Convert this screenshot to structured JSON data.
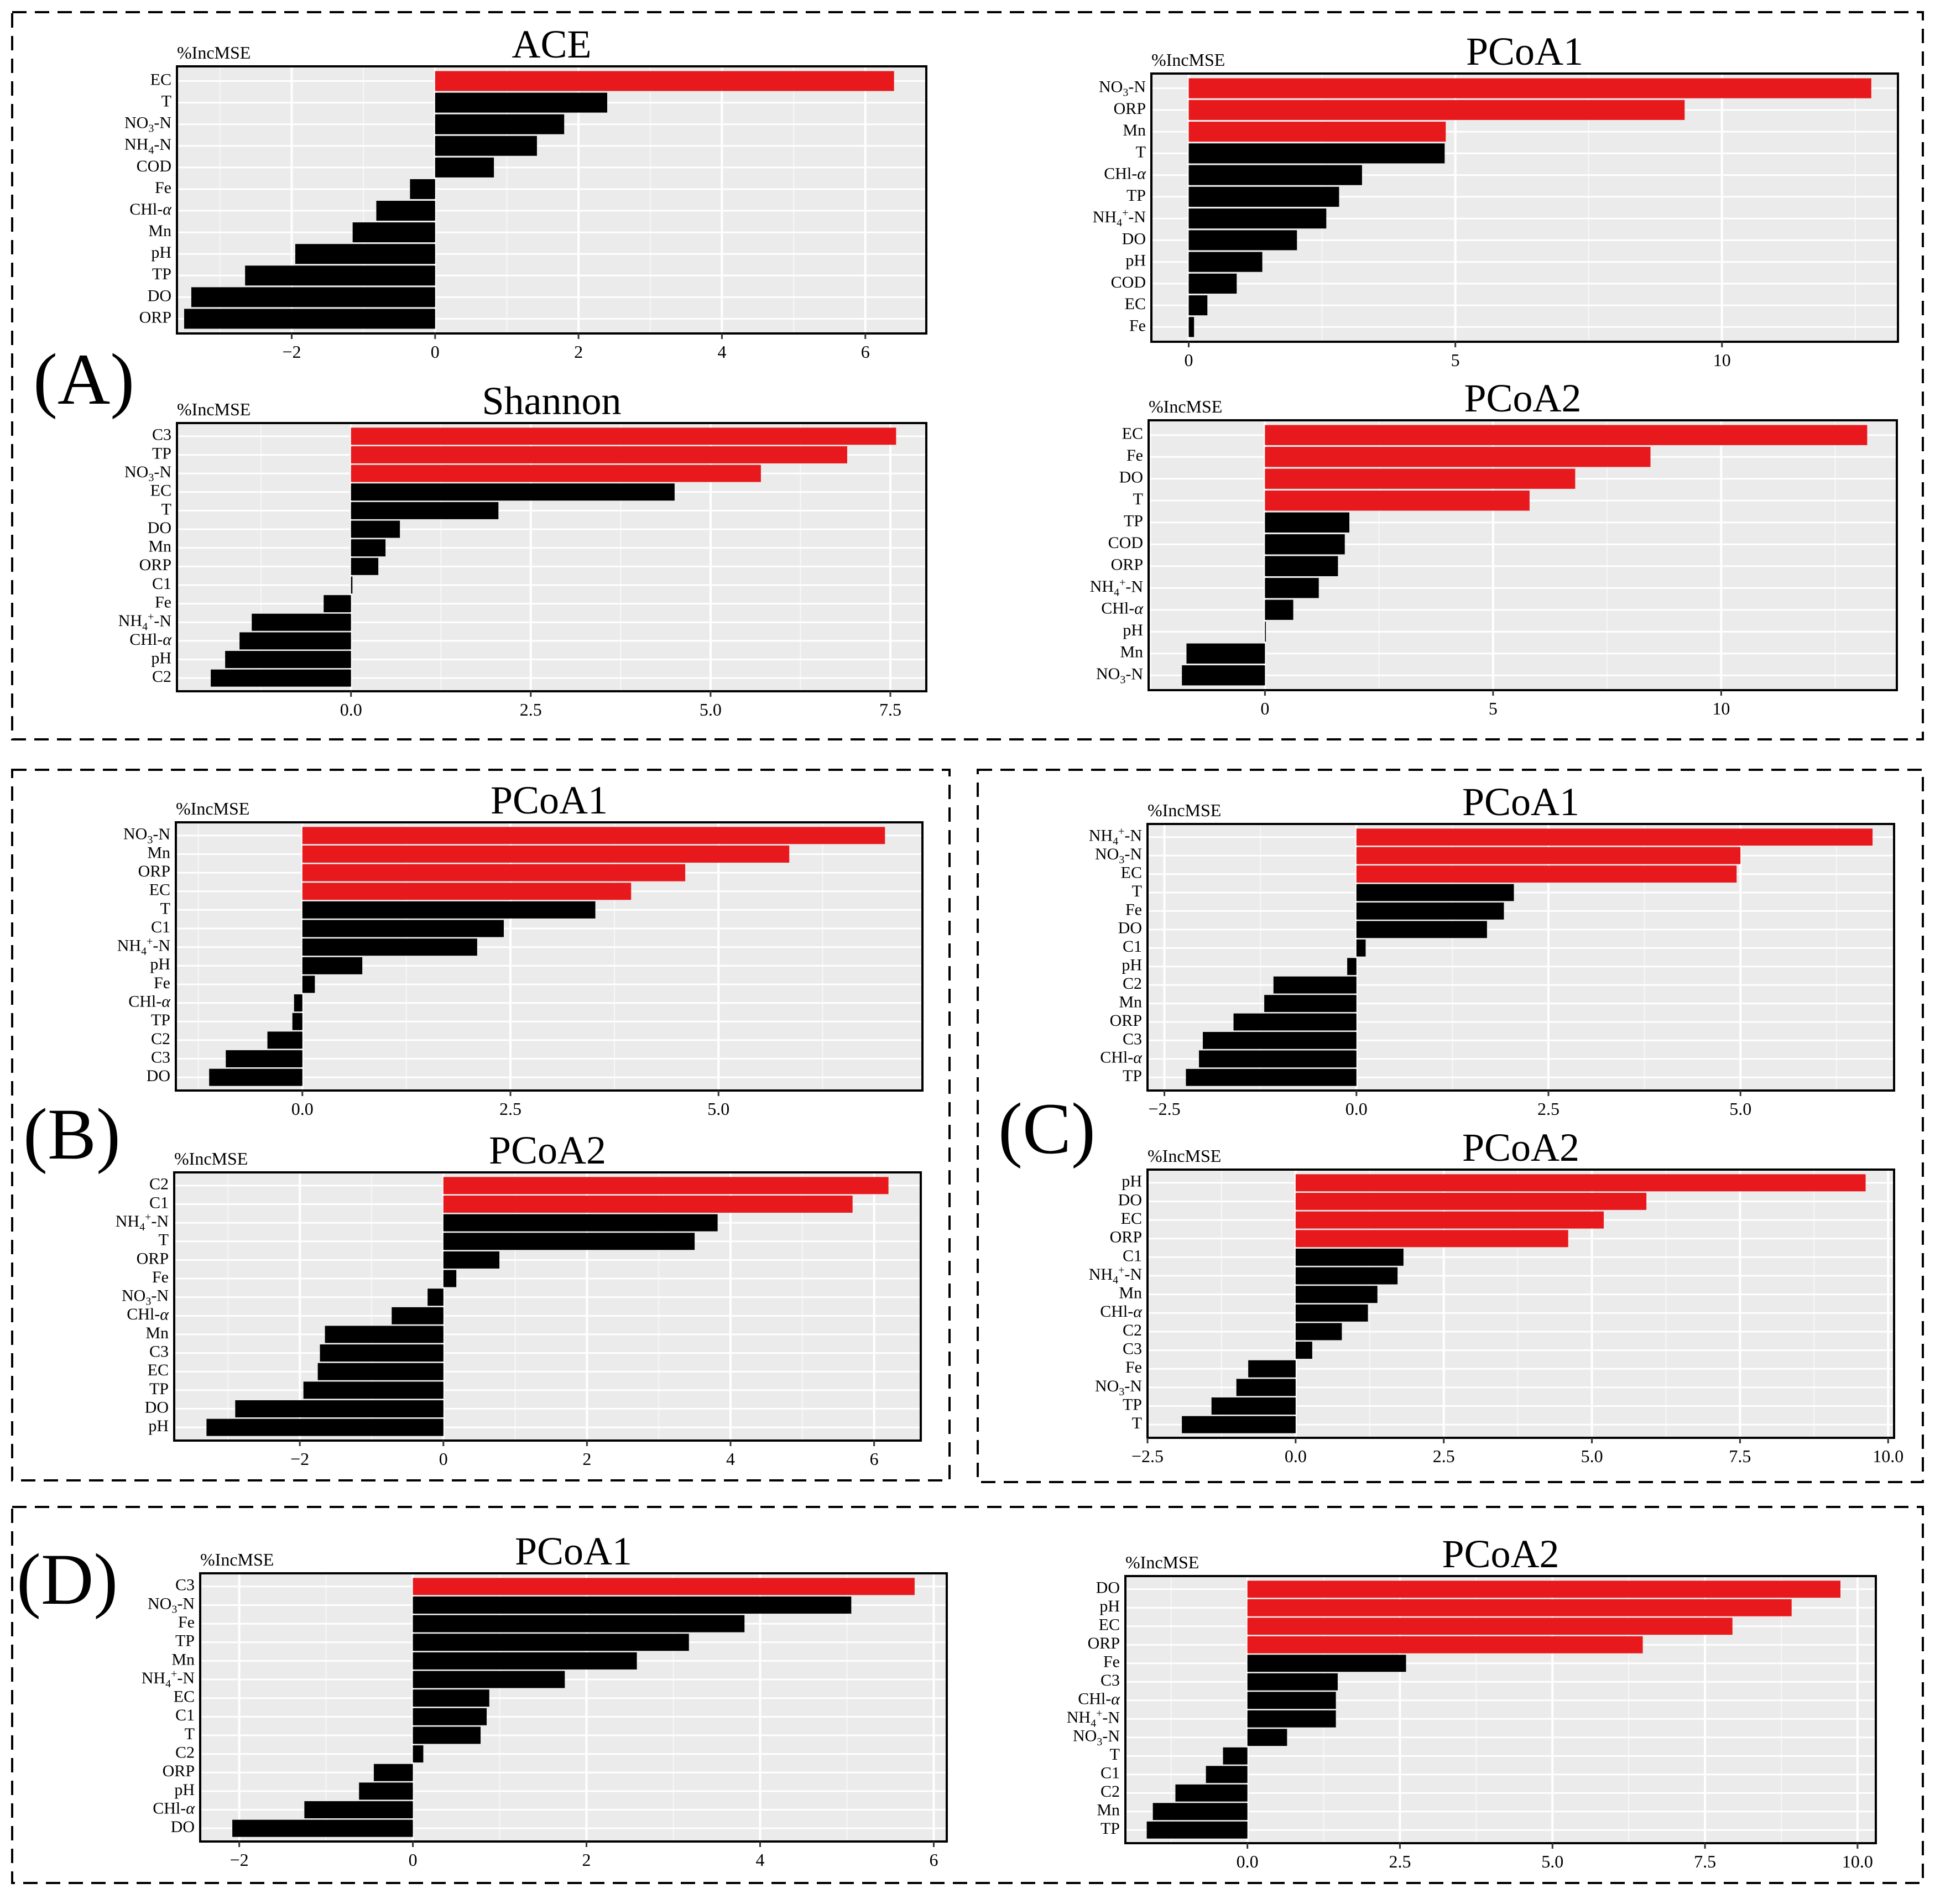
{
  "figure": {
    "section_labels": [
      {
        "id": "A",
        "text": "(A)"
      },
      {
        "id": "B",
        "text": "(B)"
      },
      {
        "id": "C",
        "text": "(C)"
      },
      {
        "id": "D",
        "text": "(D)"
      }
    ],
    "colors": {
      "highlight": "#e8191c",
      "bar": "#000000",
      "panel_bg": "#ebebeb",
      "grid": "#ffffff",
      "frame": "#000000"
    }
  },
  "chart_data": [
    {
      "id": "A-ACE",
      "section": "A",
      "type": "bar",
      "orientation": "horizontal",
      "title": "ACE",
      "axis_label": "%IncMSE",
      "xlim": [
        -3.6,
        6.85
      ],
      "ticks": [
        -2,
        0,
        2,
        4,
        6
      ],
      "tick_labels": [
        "−2",
        "0",
        "2",
        "4",
        "6"
      ],
      "categories": [
        "EC",
        "T",
        "NO3-N",
        "NH4-N",
        "COD",
        "Fe",
        "CHl-α",
        "Mn",
        "pH",
        "TP",
        "DO",
        "ORP"
      ],
      "values": [
        6.4,
        2.4,
        1.8,
        1.42,
        0.82,
        -0.35,
        -0.82,
        -1.15,
        -1.95,
        -2.65,
        -3.4,
        -3.5
      ],
      "highlighted": [
        1,
        0,
        0,
        0,
        0,
        0,
        0,
        0,
        0,
        0,
        0,
        0
      ]
    },
    {
      "id": "A-PCoA1",
      "section": "A",
      "type": "bar",
      "orientation": "horizontal",
      "title": "PCoA1",
      "axis_label": "%IncMSE",
      "xlim": [
        -0.7,
        13.3
      ],
      "ticks": [
        0,
        5,
        10
      ],
      "tick_labels": [
        "0",
        "5",
        "10"
      ],
      "categories": [
        "NO3-N",
        "ORP",
        "Mn",
        "T",
        "CHl-α",
        "TP",
        "NH4+-N",
        "DO",
        "pH",
        "COD",
        "EC",
        "Fe"
      ],
      "values": [
        12.8,
        9.3,
        4.82,
        4.8,
        3.25,
        2.82,
        2.58,
        2.03,
        1.38,
        0.9,
        0.35,
        0.1
      ],
      "highlighted": [
        1,
        1,
        1,
        0,
        0,
        0,
        0,
        0,
        0,
        0,
        0,
        0
      ]
    },
    {
      "id": "A-Shannon",
      "section": "A",
      "type": "bar",
      "orientation": "horizontal",
      "title": "Shannon",
      "axis_label": "%IncMSE",
      "xlim": [
        -2.42,
        8.0
      ],
      "ticks": [
        0,
        2.5,
        5,
        7.5
      ],
      "tick_labels": [
        "0.0",
        "2.5",
        "5.0",
        "7.5"
      ],
      "categories": [
        "C3",
        "TP",
        "NO3-N",
        "EC",
        "T",
        "DO",
        "Mn",
        "ORP",
        "C1",
        "Fe",
        "NH4+-N",
        "CHl-α",
        "pH",
        "C2"
      ],
      "values": [
        7.58,
        6.9,
        5.7,
        4.5,
        2.05,
        0.68,
        0.48,
        0.38,
        0.02,
        -0.38,
        -1.38,
        -1.55,
        -1.75,
        -1.95
      ],
      "highlighted": [
        1,
        1,
        1,
        0,
        0,
        0,
        0,
        0,
        0,
        0,
        0,
        0,
        0,
        0
      ]
    },
    {
      "id": "A-PCoA2",
      "section": "A",
      "type": "bar",
      "orientation": "horizontal",
      "title": "PCoA2",
      "axis_label": "%IncMSE",
      "xlim": [
        -2.55,
        13.85
      ],
      "ticks": [
        0,
        5,
        10
      ],
      "tick_labels": [
        "0",
        "5",
        "10"
      ],
      "categories": [
        "EC",
        "Fe",
        "DO",
        "T",
        "TP",
        "COD",
        "ORP",
        "NH4+-N",
        "CHl-α",
        "pH",
        "Mn",
        "NO3-N"
      ],
      "values": [
        13.2,
        8.45,
        6.8,
        5.8,
        1.85,
        1.75,
        1.6,
        1.18,
        0.62,
        0.02,
        -1.72,
        -1.82
      ],
      "highlighted": [
        1,
        1,
        1,
        1,
        0,
        0,
        0,
        0,
        0,
        0,
        0,
        0
      ]
    },
    {
      "id": "B-PCoA1",
      "section": "B",
      "type": "bar",
      "orientation": "horizontal",
      "title": "PCoA1",
      "axis_label": "%IncMSE",
      "xlim": [
        -1.52,
        7.45
      ],
      "ticks": [
        0,
        2.5,
        5
      ],
      "tick_labels": [
        "0.0",
        "2.5",
        "5.0"
      ],
      "categories": [
        "NO3-N",
        "Mn",
        "ORP",
        "EC",
        "T",
        "C1",
        "NH4+-N",
        "pH",
        "Fe",
        "CHl-α",
        "TP",
        "C2",
        "C3",
        "DO"
      ],
      "values": [
        7.0,
        5.85,
        4.6,
        3.95,
        3.52,
        2.42,
        2.1,
        0.72,
        0.15,
        -0.1,
        -0.12,
        -0.42,
        -0.92,
        -1.12
      ],
      "highlighted": [
        1,
        1,
        1,
        1,
        0,
        0,
        0,
        0,
        0,
        0,
        0,
        0,
        0,
        0
      ]
    },
    {
      "id": "B-PCoA2",
      "section": "B",
      "type": "bar",
      "orientation": "horizontal",
      "title": "PCoA2",
      "axis_label": "%IncMSE",
      "xlim": [
        -3.75,
        6.65
      ],
      "ticks": [
        -2,
        0,
        2,
        4,
        6
      ],
      "tick_labels": [
        "−2",
        "0",
        "2",
        "4",
        "6"
      ],
      "categories": [
        "C2",
        "C1",
        "NH4+-N",
        "T",
        "ORP",
        "Fe",
        "NO3-N",
        "CHl-α",
        "Mn",
        "C3",
        "EC",
        "TP",
        "DO",
        "pH"
      ],
      "values": [
        6.2,
        5.7,
        3.82,
        3.5,
        0.78,
        0.18,
        -0.22,
        -0.72,
        -1.65,
        -1.72,
        -1.75,
        -1.95,
        -2.9,
        -3.3
      ],
      "highlighted": [
        1,
        1,
        0,
        0,
        0,
        0,
        0,
        0,
        0,
        0,
        0,
        0,
        0,
        0
      ]
    },
    {
      "id": "C-PCoA1",
      "section": "C",
      "type": "bar",
      "orientation": "horizontal",
      "title": "PCoA1",
      "axis_label": "%IncMSE",
      "xlim": [
        -2.72,
        7.0
      ],
      "ticks": [
        -2.5,
        0,
        2.5,
        5
      ],
      "tick_labels": [
        "−2.5",
        "0.0",
        "2.5",
        "5.0"
      ],
      "categories": [
        "NH4+-N",
        "NO3-N",
        "EC",
        "T",
        "Fe",
        "DO",
        "C1",
        "pH",
        "C2",
        "Mn",
        "ORP",
        "C3",
        "CHl-α",
        "TP"
      ],
      "values": [
        6.72,
        5.0,
        4.95,
        2.05,
        1.92,
        1.7,
        0.12,
        -0.12,
        -1.08,
        -1.2,
        -1.6,
        -2.0,
        -2.05,
        -2.22
      ],
      "highlighted": [
        1,
        1,
        1,
        0,
        0,
        0,
        0,
        0,
        0,
        0,
        0,
        0,
        0,
        0
      ]
    },
    {
      "id": "C-PCoA2",
      "section": "C",
      "type": "bar",
      "orientation": "horizontal",
      "title": "PCoA2",
      "axis_label": "%IncMSE",
      "xlim": [
        -2.5,
        10.1
      ],
      "ticks": [
        -2.5,
        0,
        2.5,
        5,
        7.5,
        10
      ],
      "tick_labels": [
        "−2.5",
        "0.0",
        "2.5",
        "5.0",
        "7.5",
        "10.0"
      ],
      "categories": [
        "pH",
        "DO",
        "EC",
        "ORP",
        "C1",
        "NH4+-N",
        "Mn",
        "CHl-α",
        "C2",
        "C3",
        "Fe",
        "NO3-N",
        "TP",
        "T"
      ],
      "values": [
        9.62,
        5.92,
        5.2,
        4.6,
        1.82,
        1.72,
        1.38,
        1.22,
        0.78,
        0.28,
        -0.8,
        -1.0,
        -1.42,
        -1.92
      ],
      "highlighted": [
        1,
        1,
        1,
        1,
        0,
        0,
        0,
        0,
        0,
        0,
        0,
        0,
        0,
        0
      ]
    },
    {
      "id": "D-PCoA1",
      "section": "D",
      "type": "bar",
      "orientation": "horizontal",
      "title": "PCoA1",
      "axis_label": "%IncMSE",
      "xlim": [
        -2.45,
        6.15
      ],
      "ticks": [
        -2,
        0,
        2,
        4,
        6
      ],
      "tick_labels": [
        "−2",
        "0",
        "2",
        "4",
        "6"
      ],
      "categories": [
        "C3",
        "NO3-N",
        "Fe",
        "TP",
        "Mn",
        "NH4+-N",
        "EC",
        "C1",
        "T",
        "C2",
        "ORP",
        "pH",
        "CHl-α",
        "DO"
      ],
      "values": [
        5.78,
        5.05,
        3.82,
        3.18,
        2.58,
        1.75,
        0.88,
        0.85,
        0.78,
        0.12,
        -0.45,
        -0.62,
        -1.25,
        -2.08
      ],
      "highlighted": [
        1,
        0,
        0,
        0,
        0,
        0,
        0,
        0,
        0,
        0,
        0,
        0,
        0,
        0
      ]
    },
    {
      "id": "D-PCoA2",
      "section": "D",
      "type": "bar",
      "orientation": "horizontal",
      "title": "PCoA2",
      "axis_label": "%IncMSE",
      "xlim": [
        -2.0,
        10.3
      ],
      "ticks": [
        0,
        2.5,
        5,
        7.5,
        10
      ],
      "tick_labels": [
        "0.0",
        "2.5",
        "5.0",
        "7.5",
        "10.0"
      ],
      "categories": [
        "DO",
        "pH",
        "EC",
        "ORP",
        "Fe",
        "C3",
        "CHl-α",
        "NH4+-N",
        "NO3-N",
        "T",
        "C1",
        "C2",
        "Mn",
        "TP"
      ],
      "values": [
        9.72,
        8.92,
        7.95,
        6.48,
        2.6,
        1.48,
        1.45,
        1.45,
        0.65,
        -0.4,
        -0.68,
        -1.18,
        -1.55,
        -1.65
      ],
      "highlighted": [
        1,
        1,
        1,
        1,
        0,
        0,
        0,
        0,
        0,
        0,
        0,
        0,
        0,
        0
      ]
    }
  ]
}
